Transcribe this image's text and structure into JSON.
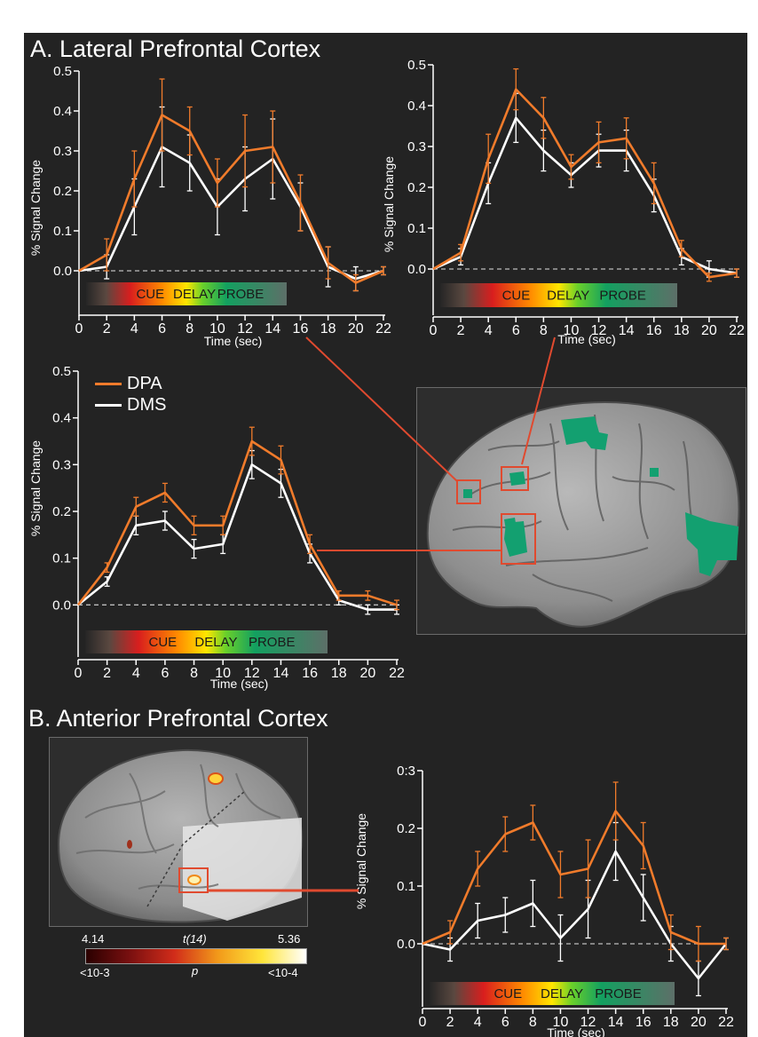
{
  "figure": {
    "section_a_title": "A. Lateral Prefrontal Cortex",
    "section_b_title": "B. Anterior Prefrontal Cortex",
    "legend": [
      {
        "name": "DPA",
        "color": "#f07b2b"
      },
      {
        "name": "DMS",
        "color": "#ffffff"
      }
    ],
    "colorbar": {
      "t_min": "4.14",
      "t_label": "t(14)",
      "t_max": "5.36",
      "p_min": "<10-3",
      "p_label": "p",
      "p_max": "<10-4"
    },
    "colors": {
      "dpa": "#f07b2b",
      "dms": "#ffffff",
      "highlight": "#e04a2f",
      "activation": "#13a070",
      "background": "#232323"
    }
  },
  "chart_data": [
    {
      "type": "line",
      "id": "a1",
      "xlabel": "Time (sec)",
      "ylabel": "% Signal Change",
      "x": [
        0,
        2,
        4,
        6,
        8,
        10,
        12,
        14,
        16,
        18,
        20,
        22
      ],
      "xticks": [
        "0",
        "2",
        "4",
        "6",
        "8",
        "10",
        "12",
        "14",
        "16",
        "18",
        "20",
        "22"
      ],
      "yticks": [
        "0.0",
        "0.1",
        "0.2",
        "0.3",
        "0.4",
        "0.5"
      ],
      "ylim": [
        -0.1,
        0.5
      ],
      "band_labels": [
        "CUE",
        "DELAY",
        "PROBE"
      ],
      "series": [
        {
          "name": "DPA",
          "values": [
            0.0,
            0.04,
            0.23,
            0.39,
            0.35,
            0.22,
            0.3,
            0.31,
            0.17,
            0.02,
            -0.03,
            0.0
          ],
          "errors": [
            0.0,
            0.04,
            0.07,
            0.09,
            0.06,
            0.06,
            0.09,
            0.09,
            0.07,
            0.04,
            0.02,
            0.01
          ]
        },
        {
          "name": "DMS",
          "values": [
            0.0,
            0.01,
            0.16,
            0.31,
            0.27,
            0.16,
            0.23,
            0.28,
            0.16,
            0.01,
            -0.02,
            0.0
          ],
          "errors": [
            0.0,
            0.03,
            0.07,
            0.1,
            0.07,
            0.07,
            0.08,
            0.1,
            0.06,
            0.05,
            0.03,
            0.01
          ]
        }
      ]
    },
    {
      "type": "line",
      "id": "a2",
      "xlabel": "Time (sec)",
      "ylabel": "% Signal Change",
      "x": [
        0,
        2,
        4,
        6,
        8,
        10,
        12,
        14,
        16,
        18,
        20,
        22
      ],
      "xticks": [
        "0",
        "2",
        "4",
        "6",
        "8",
        "10",
        "12",
        "14",
        "16",
        "18",
        "20",
        "22"
      ],
      "yticks": [
        "0.0",
        "0.1",
        "0.2",
        "0.3",
        "0.4",
        "0.5"
      ],
      "ylim": [
        -0.1,
        0.5
      ],
      "band_labels": [
        "CUE",
        "DELAY",
        "PROBE"
      ],
      "series": [
        {
          "name": "DPA",
          "values": [
            0.0,
            0.04,
            0.27,
            0.44,
            0.37,
            0.25,
            0.31,
            0.32,
            0.21,
            0.05,
            -0.02,
            -0.01
          ],
          "errors": [
            0.0,
            0.02,
            0.06,
            0.05,
            0.05,
            0.03,
            0.05,
            0.05,
            0.05,
            0.02,
            0.01,
            0.01
          ]
        },
        {
          "name": "DMS",
          "values": [
            0.0,
            0.03,
            0.21,
            0.37,
            0.29,
            0.23,
            0.29,
            0.29,
            0.18,
            0.03,
            0.0,
            -0.01
          ],
          "errors": [
            0.0,
            0.02,
            0.05,
            0.06,
            0.05,
            0.03,
            0.04,
            0.05,
            0.04,
            0.02,
            0.02,
            0.01
          ]
        }
      ]
    },
    {
      "type": "line",
      "id": "a3",
      "xlabel": "Time (sec)",
      "ylabel": "% Signal Change",
      "x": [
        0,
        2,
        4,
        6,
        8,
        10,
        12,
        14,
        16,
        18,
        20,
        22
      ],
      "xticks": [
        "0",
        "2",
        "4",
        "6",
        "8",
        "10",
        "12",
        "14",
        "16",
        "18",
        "20",
        "22"
      ],
      "yticks": [
        "0.0",
        "0.1",
        "0.2",
        "0.3",
        "0.4",
        "0.5"
      ],
      "ylim": [
        -0.1,
        0.5
      ],
      "band_labels": [
        "CUE",
        "DELAY",
        "PROBE"
      ],
      "series": [
        {
          "name": "DPA",
          "values": [
            0.0,
            0.08,
            0.21,
            0.24,
            0.17,
            0.17,
            0.35,
            0.31,
            0.13,
            0.02,
            0.02,
            0.0
          ],
          "errors": [
            0.0,
            0.01,
            0.02,
            0.02,
            0.02,
            0.02,
            0.03,
            0.03,
            0.02,
            0.01,
            0.01,
            0.01
          ]
        },
        {
          "name": "DMS",
          "values": [
            0.0,
            0.05,
            0.17,
            0.18,
            0.12,
            0.13,
            0.3,
            0.26,
            0.11,
            0.01,
            -0.01,
            -0.01
          ],
          "errors": [
            0.0,
            0.01,
            0.02,
            0.02,
            0.02,
            0.02,
            0.03,
            0.03,
            0.02,
            0.01,
            0.01,
            0.01
          ]
        }
      ]
    },
    {
      "type": "line",
      "id": "b1",
      "xlabel": "Time (sec)",
      "ylabel": "% Signal Change",
      "x": [
        0,
        2,
        4,
        6,
        8,
        10,
        12,
        14,
        16,
        18,
        20,
        22
      ],
      "xticks": [
        "0",
        "2",
        "4",
        "6",
        "8",
        "10",
        "12",
        "14",
        "16",
        "18",
        "20",
        "22"
      ],
      "yticks": [
        "0.0",
        "0.1",
        "0.2",
        "0:3"
      ],
      "ylim": [
        -0.1,
        0.3
      ],
      "band_labels": [
        "CUE",
        "DELAY",
        "PROBE"
      ],
      "series": [
        {
          "name": "DPA",
          "values": [
            0.0,
            0.02,
            0.13,
            0.19,
            0.21,
            0.12,
            0.13,
            0.23,
            0.17,
            0.02,
            0.0,
            0.0
          ],
          "errors": [
            0.0,
            0.02,
            0.03,
            0.03,
            0.03,
            0.04,
            0.05,
            0.05,
            0.04,
            0.03,
            0.03,
            0.01
          ]
        },
        {
          "name": "DMS",
          "values": [
            0.0,
            -0.01,
            0.04,
            0.05,
            0.07,
            0.01,
            0.06,
            0.16,
            0.08,
            0.0,
            -0.06,
            0.0
          ],
          "errors": [
            0.0,
            0.02,
            0.03,
            0.03,
            0.04,
            0.04,
            0.05,
            0.05,
            0.04,
            0.03,
            0.03,
            0.01
          ]
        }
      ]
    }
  ]
}
